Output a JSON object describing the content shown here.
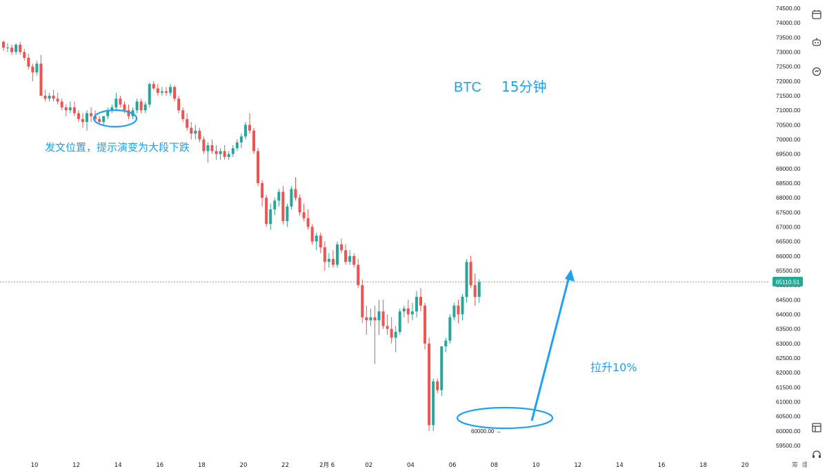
{
  "chart_data": {
    "type": "candlestick",
    "symbol_label": "BTC",
    "timeframe_label": "15分钟",
    "y_ticks": [
      "74500.00",
      "74000.00",
      "73500.00",
      "73000.00",
      "72500.00",
      "72000.00",
      "71500.00",
      "71000.00",
      "70500.00",
      "70000.00",
      "69500.00",
      "69000.00",
      "68500.00",
      "68000.00",
      "67500.00",
      "67000.00",
      "66500.00",
      "66000.00",
      "65500.00",
      "65000.00",
      "64500.00",
      "64000.00",
      "63500.00",
      "63000.00",
      "62500.00",
      "62000.00",
      "61500.00",
      "61000.00",
      "60500.00",
      "60000.00",
      "59500.00"
    ],
    "ylim": [
      59200,
      74700
    ],
    "x_ticks": [
      "10",
      "12",
      "14",
      "16",
      "18",
      "20",
      "22",
      "2月 6",
      "02",
      "04",
      "06",
      "08",
      "10",
      "12",
      "14",
      "16",
      "18",
      "20"
    ],
    "x_corner_labels": [
      "筹",
      "爆"
    ],
    "current_price": "65110.51",
    "low_marker": "60000.00 →",
    "annotations": {
      "post_position": "发文位置，提示演变为大段下跌",
      "rise": "拉升10%"
    },
    "colors": {
      "up": "#26a69a",
      "down": "#ef5350",
      "accent": "#1da1f2",
      "price_label_bg": "#22ab94"
    },
    "candles": [
      [
        73350,
        73400,
        73050,
        73150
      ],
      [
        73150,
        73300,
        73000,
        73150
      ],
      [
        73150,
        73250,
        72900,
        73000
      ],
      [
        73000,
        73300,
        72900,
        73250
      ],
      [
        73250,
        73350,
        72900,
        73000
      ],
      [
        73000,
        73100,
        72700,
        72800
      ],
      [
        72800,
        72950,
        72400,
        72500
      ],
      [
        72500,
        72600,
        72000,
        72300
      ],
      [
        72300,
        72700,
        72200,
        72600
      ],
      [
        72600,
        72900,
        71500,
        71500
      ],
      [
        71500,
        71700,
        71300,
        71400
      ],
      [
        71400,
        71600,
        71300,
        71500
      ],
      [
        71500,
        71700,
        71300,
        71400
      ],
      [
        71400,
        71600,
        71200,
        71300
      ],
      [
        71300,
        71400,
        71000,
        71100
      ],
      [
        71100,
        71200,
        70800,
        71000
      ],
      [
        71000,
        71300,
        70900,
        71100
      ],
      [
        71100,
        71300,
        70800,
        70900
      ],
      [
        70900,
        71000,
        70600,
        70700
      ],
      [
        70700,
        70900,
        70400,
        70600
      ],
      [
        70600,
        71000,
        70300,
        70900
      ],
      [
        70900,
        71100,
        70600,
        70800
      ],
      [
        70800,
        71000,
        70600,
        70700
      ],
      [
        70700,
        70800,
        70500,
        70600
      ],
      [
        70600,
        70800,
        70500,
        70800
      ],
      [
        70800,
        71100,
        70700,
        71000
      ],
      [
        71000,
        71200,
        70900,
        71100
      ],
      [
        71100,
        71600,
        71000,
        71400
      ],
      [
        71400,
        71500,
        71100,
        71200
      ],
      [
        71200,
        71300,
        70900,
        71000
      ],
      [
        71000,
        71200,
        70700,
        70800
      ],
      [
        70800,
        71100,
        70700,
        71000
      ],
      [
        71000,
        71400,
        70900,
        71300
      ],
      [
        71300,
        71400,
        70900,
        71000
      ],
      [
        71000,
        71300,
        70900,
        71200
      ],
      [
        71200,
        71950,
        71100,
        71900
      ],
      [
        71900,
        72000,
        71700,
        71750
      ],
      [
        71750,
        71900,
        71500,
        71600
      ],
      [
        71600,
        71800,
        71500,
        71650
      ],
      [
        71650,
        71800,
        71500,
        71600
      ],
      [
        71600,
        71900,
        71500,
        71800
      ],
      [
        71800,
        71850,
        71300,
        71400
      ],
      [
        71400,
        71500,
        70900,
        71000
      ],
      [
        71000,
        71100,
        70600,
        70700
      ],
      [
        70700,
        70900,
        70300,
        70400
      ],
      [
        70400,
        70600,
        70000,
        70200
      ],
      [
        70200,
        70500,
        70000,
        70300
      ],
      [
        70300,
        70400,
        69900,
        70000
      ],
      [
        70000,
        70100,
        69500,
        69600
      ],
      [
        69600,
        69900,
        69200,
        69800
      ],
      [
        69800,
        70000,
        69500,
        69600
      ],
      [
        69600,
        69800,
        69300,
        69500
      ],
      [
        69500,
        69700,
        69300,
        69600
      ],
      [
        69600,
        69800,
        69300,
        69400
      ],
      [
        69400,
        69600,
        69300,
        69500
      ],
      [
        69500,
        69800,
        69400,
        69700
      ],
      [
        69700,
        70000,
        69600,
        69900
      ],
      [
        69900,
        70200,
        69700,
        70100
      ],
      [
        70100,
        70600,
        70000,
        70500
      ],
      [
        70500,
        70900,
        70200,
        70300
      ],
      [
        70300,
        70400,
        69500,
        69600
      ],
      [
        69600,
        69700,
        68400,
        68500
      ],
      [
        68500,
        68600,
        67700,
        68000
      ],
      [
        68000,
        68100,
        67000,
        67100
      ],
      [
        67100,
        67800,
        66900,
        67600
      ],
      [
        67600,
        68000,
        67400,
        67900
      ],
      [
        67900,
        68300,
        67700,
        68200
      ],
      [
        68200,
        68400,
        67100,
        67200
      ],
      [
        67200,
        67800,
        67000,
        67700
      ],
      [
        67700,
        68400,
        67600,
        68300
      ],
      [
        68300,
        68700,
        67900,
        68000
      ],
      [
        68000,
        68100,
        67400,
        67500
      ],
      [
        67500,
        67800,
        67200,
        67300
      ],
      [
        67300,
        67600,
        66900,
        67000
      ],
      [
        67000,
        67100,
        66400,
        66500
      ],
      [
        66500,
        66800,
        66200,
        66700
      ],
      [
        66700,
        66800,
        66100,
        66300
      ],
      [
        66300,
        66500,
        65500,
        65800
      ],
      [
        65800,
        66100,
        65600,
        65900
      ],
      [
        65900,
        66200,
        65600,
        65700
      ],
      [
        65700,
        66500,
        65600,
        66400
      ],
      [
        66400,
        66600,
        66100,
        66200
      ],
      [
        66200,
        66400,
        65700,
        65800
      ],
      [
        65800,
        66200,
        65700,
        66000
      ],
      [
        66000,
        66100,
        65600,
        65700
      ],
      [
        65700,
        65900,
        64900,
        65000
      ],
      [
        65000,
        65200,
        63700,
        63900
      ],
      [
        63900,
        64300,
        63300,
        63800
      ],
      [
        63800,
        64200,
        63600,
        63900
      ],
      [
        63900,
        64300,
        62300,
        63800
      ],
      [
        63800,
        64500,
        63300,
        64100
      ],
      [
        64100,
        64500,
        63500,
        63600
      ],
      [
        63600,
        64000,
        63300,
        63500
      ],
      [
        63500,
        63900,
        63000,
        63200
      ],
      [
        63200,
        63600,
        62700,
        63400
      ],
      [
        63400,
        64200,
        63300,
        64100
      ],
      [
        64100,
        64300,
        63900,
        64200
      ],
      [
        64200,
        64500,
        63700,
        64000
      ],
      [
        64000,
        64400,
        63800,
        64100
      ],
      [
        64100,
        64800,
        63900,
        64600
      ],
      [
        64600,
        64900,
        64100,
        64300
      ],
      [
        64300,
        64400,
        62800,
        63000
      ],
      [
        63000,
        63200,
        60000,
        60200
      ],
      [
        60200,
        61800,
        60000,
        61700
      ],
      [
        61700,
        61800,
        61300,
        61400
      ],
      [
        61400,
        62900,
        61200,
        62900
      ],
      [
        62900,
        63200,
        62700,
        63100
      ],
      [
        63100,
        64000,
        63000,
        63900
      ],
      [
        63900,
        64400,
        63800,
        64300
      ],
      [
        64300,
        64500,
        63700,
        64000
      ],
      [
        64000,
        64700,
        63800,
        64600
      ],
      [
        64600,
        65900,
        64400,
        65800
      ],
      [
        65800,
        66000,
        64900,
        65000
      ],
      [
        65000,
        65400,
        64300,
        64600
      ],
      [
        64600,
        65200,
        64400,
        65100
      ]
    ]
  },
  "toolbar": {
    "icons": [
      "calendar-icon",
      "robot-icon",
      "settings-cycle-icon",
      "layout-icon",
      "headset-icon"
    ]
  }
}
